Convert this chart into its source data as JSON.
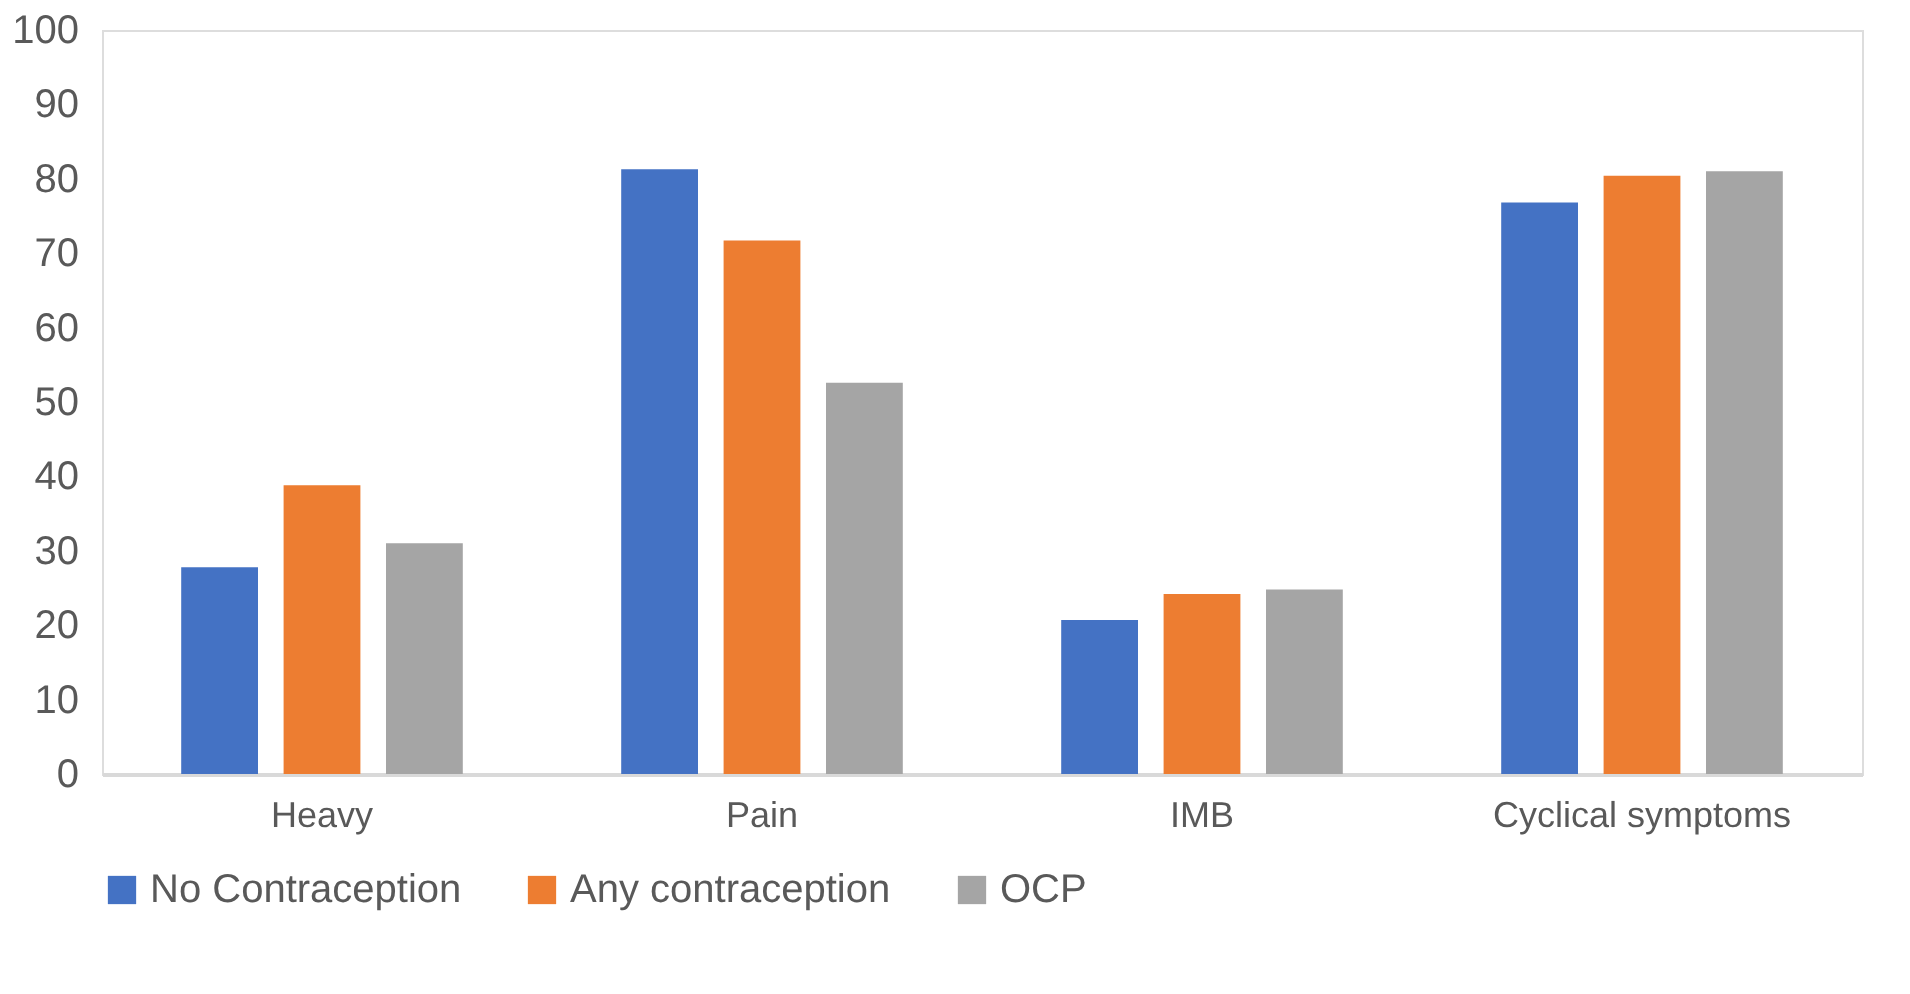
{
  "chart_data": {
    "type": "bar",
    "categories": [
      "Heavy",
      "Pain",
      "IMB",
      "Cyclical symptoms"
    ],
    "series": [
      {
        "name": "No Contraception",
        "color": "#4472c4",
        "values": [
          27.8,
          81.3,
          20.7,
          76.8
        ]
      },
      {
        "name": "Any contraception",
        "color": "#ed7d31",
        "values": [
          38.8,
          71.7,
          24.2,
          80.4
        ]
      },
      {
        "name": "OCP",
        "color": "#a5a5a5",
        "values": [
          31.0,
          52.6,
          24.8,
          81.0
        ]
      }
    ],
    "ylim": [
      0,
      100
    ],
    "yticks": [
      0,
      10,
      20,
      30,
      40,
      50,
      60,
      70,
      80,
      90,
      100
    ],
    "grid": false,
    "legend": "bottom"
  }
}
